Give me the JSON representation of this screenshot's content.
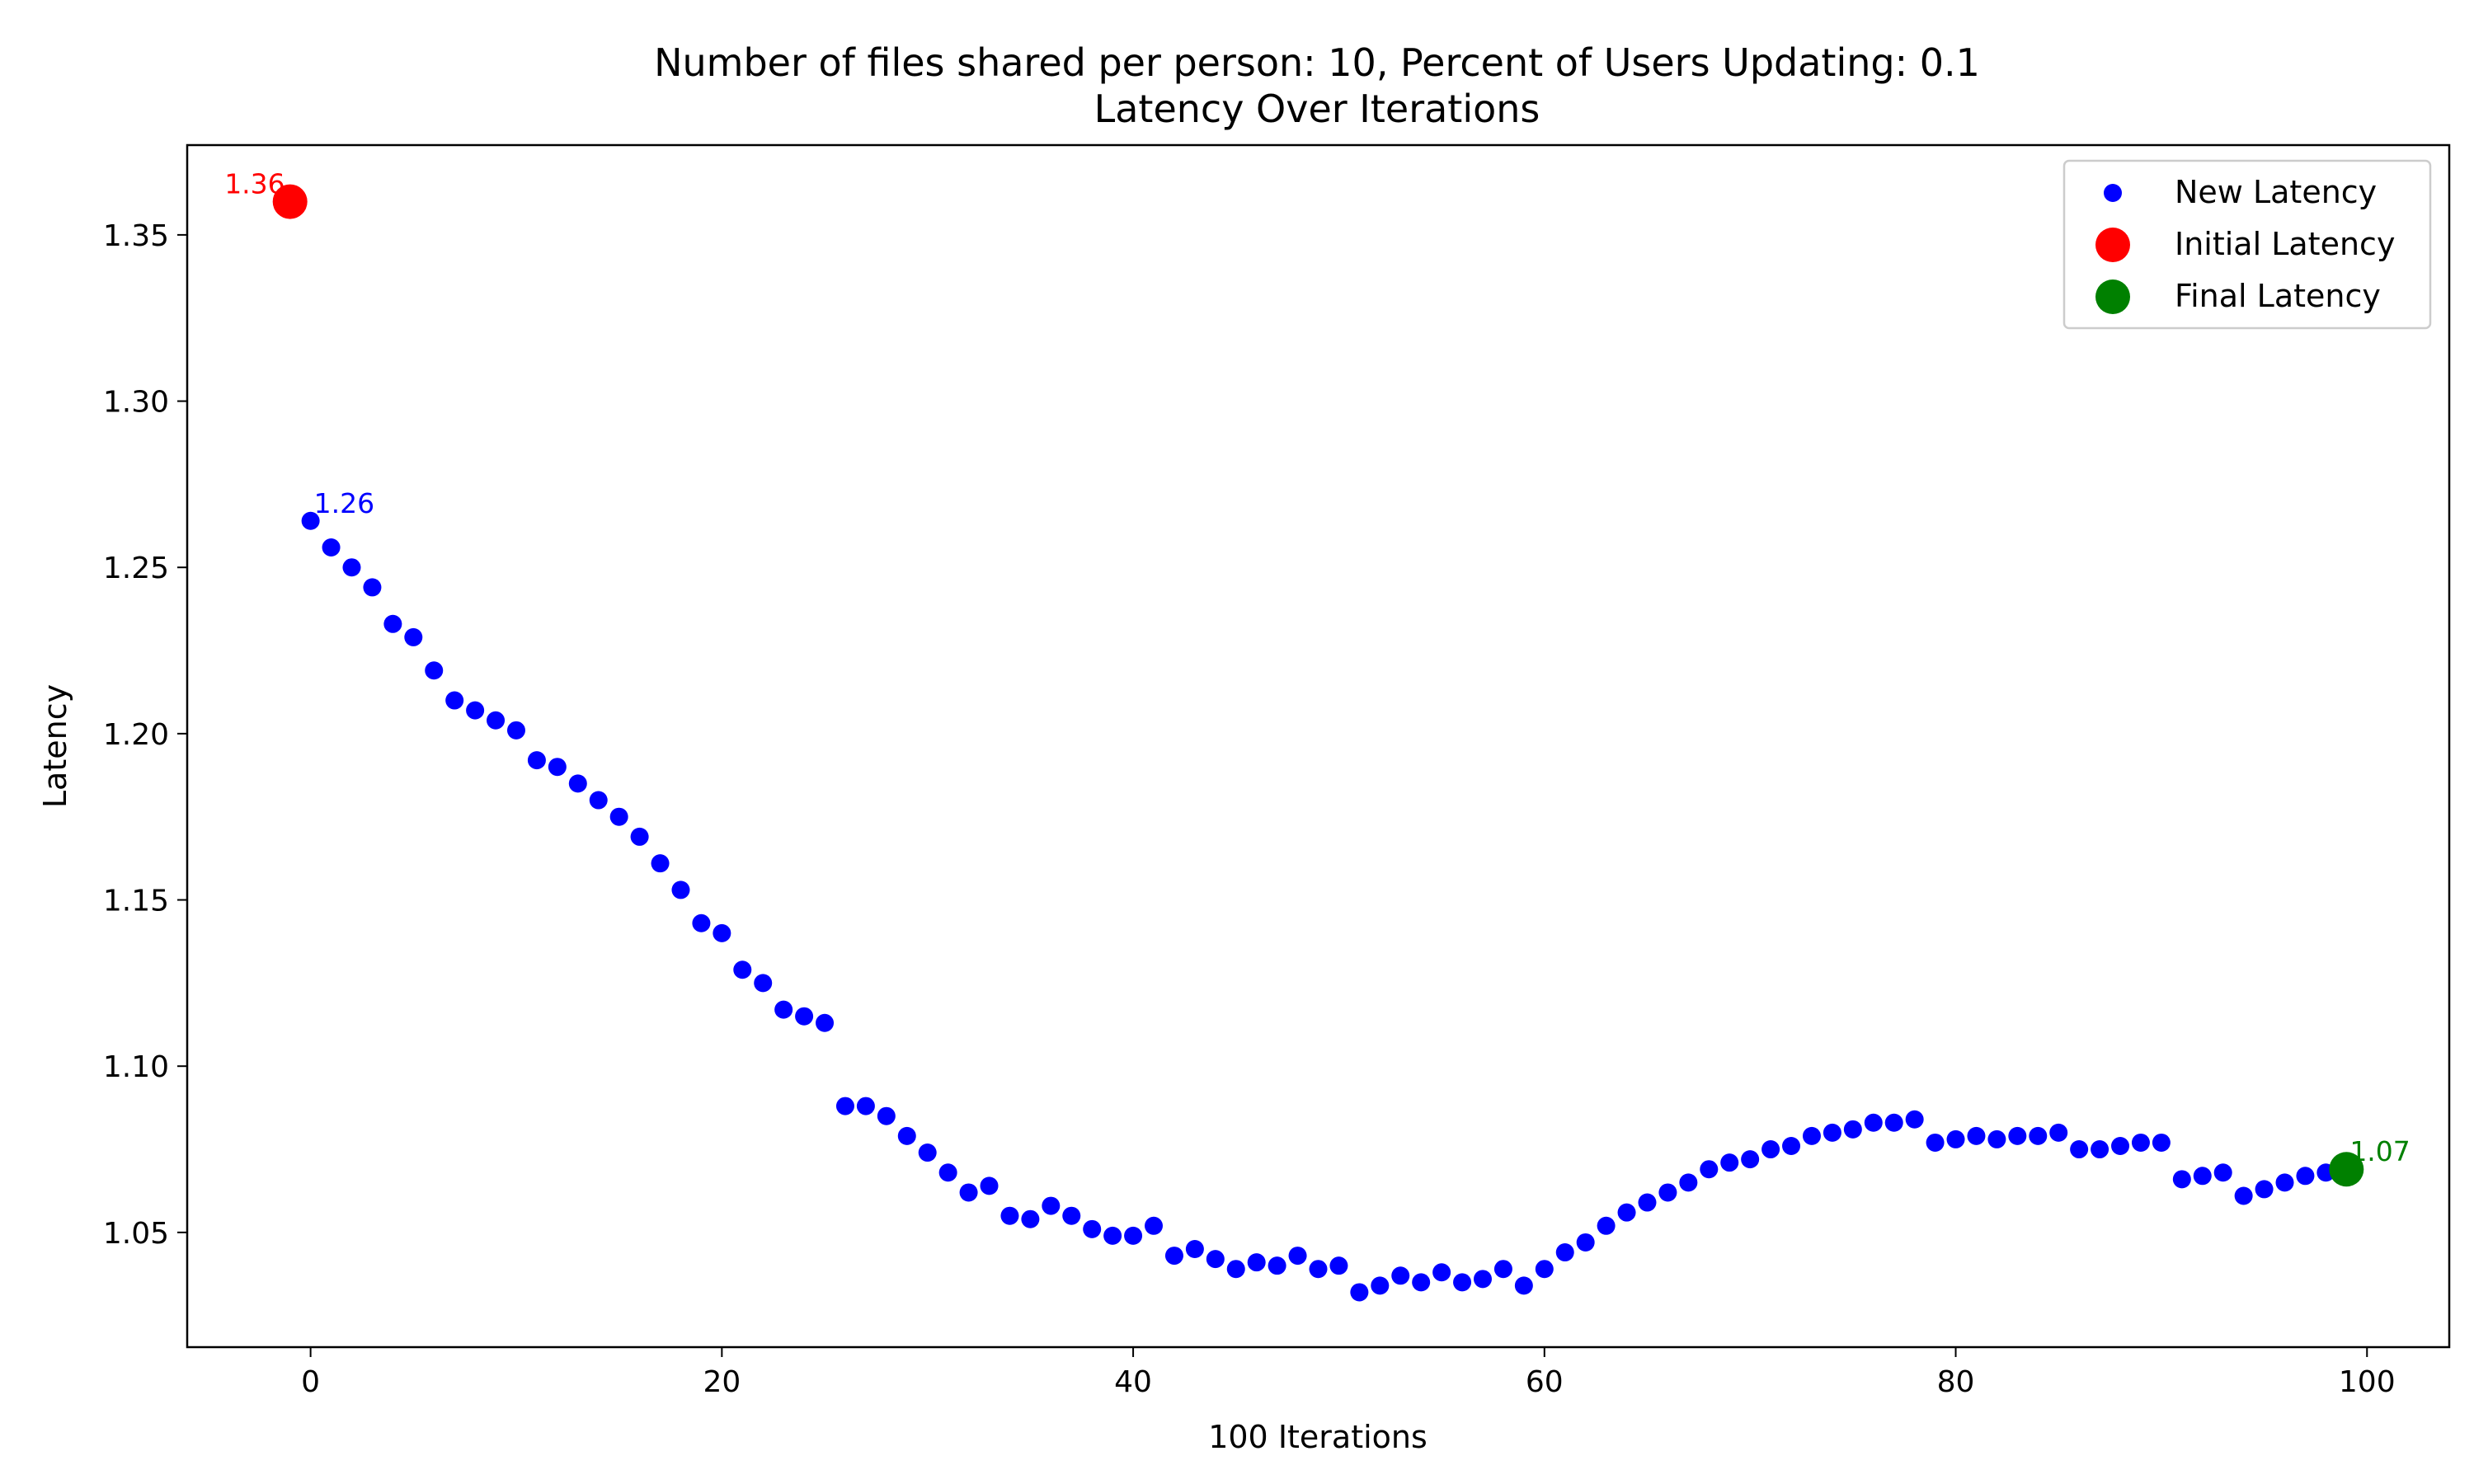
{
  "chart_data": {
    "type": "scatter",
    "title": "Number of files shared per person: 10, Percent of Users Updating: 0.1",
    "subtitle": "Latency Over Iterations",
    "xlabel": "100 Iterations",
    "ylabel": "Latency",
    "xlim": [
      -6,
      104
    ],
    "ylim": [
      1.0155,
      1.377
    ],
    "xticks": [
      0,
      20,
      40,
      60,
      80,
      100
    ],
    "yticks": [
      1.05,
      1.1,
      1.15,
      1.2,
      1.25,
      1.3,
      1.35
    ],
    "xtick_labels": [
      "0",
      "20",
      "40",
      "60",
      "80",
      "100"
    ],
    "ytick_labels": [
      "1.05",
      "1.10",
      "1.15",
      "1.20",
      "1.25",
      "1.30",
      "1.35"
    ],
    "grid": false,
    "legend_position": "top-right",
    "series": [
      {
        "name": "New Latency",
        "color": "#0000ff",
        "marker": "small-circle",
        "x": [
          0,
          1,
          2,
          3,
          4,
          5,
          6,
          7,
          8,
          9,
          10,
          11,
          12,
          13,
          14,
          15,
          16,
          17,
          18,
          19,
          20,
          21,
          22,
          23,
          24,
          25,
          26,
          27,
          28,
          29,
          30,
          31,
          32,
          33,
          34,
          35,
          36,
          37,
          38,
          39,
          40,
          41,
          42,
          43,
          44,
          45,
          46,
          47,
          48,
          49,
          50,
          51,
          52,
          53,
          54,
          55,
          56,
          57,
          58,
          59,
          60,
          61,
          62,
          63,
          64,
          65,
          66,
          67,
          68,
          69,
          70,
          71,
          72,
          73,
          74,
          75,
          76,
          77,
          78,
          79,
          80,
          81,
          82,
          83,
          84,
          85,
          86,
          87,
          88,
          89,
          90,
          91,
          92,
          93,
          94,
          95,
          96,
          97,
          98
        ],
        "y": [
          1.264,
          1.256,
          1.25,
          1.244,
          1.233,
          1.229,
          1.219,
          1.21,
          1.207,
          1.204,
          1.201,
          1.192,
          1.19,
          1.185,
          1.18,
          1.175,
          1.169,
          1.161,
          1.153,
          1.143,
          1.14,
          1.129,
          1.125,
          1.117,
          1.115,
          1.113,
          1.088,
          1.088,
          1.085,
          1.079,
          1.074,
          1.068,
          1.062,
          1.064,
          1.055,
          1.054,
          1.058,
          1.055,
          1.051,
          1.049,
          1.049,
          1.052,
          1.043,
          1.045,
          1.042,
          1.039,
          1.041,
          1.04,
          1.043,
          1.039,
          1.04,
          1.032,
          1.034,
          1.037,
          1.035,
          1.038,
          1.035,
          1.036,
          1.039,
          1.034,
          1.039,
          1.044,
          1.047,
          1.052,
          1.056,
          1.059,
          1.062,
          1.065,
          1.069,
          1.071,
          1.072,
          1.075,
          1.076,
          1.079,
          1.08,
          1.081,
          1.083,
          1.083,
          1.084,
          1.077,
          1.078,
          1.079,
          1.078,
          1.079,
          1.079,
          1.08,
          1.075,
          1.075,
          1.076,
          1.077,
          1.077,
          1.066,
          1.067,
          1.068,
          1.061,
          1.063,
          1.065,
          1.067,
          1.068
        ]
      },
      {
        "name": "Initial Latency",
        "color": "#ff0000",
        "marker": "large-circle",
        "x": [
          -1
        ],
        "y": [
          1.36
        ]
      },
      {
        "name": "Final Latency",
        "color": "#008000",
        "marker": "large-circle",
        "x": [
          99
        ],
        "y": [
          1.069
        ]
      }
    ],
    "annotations": [
      {
        "text": "1.36",
        "x": -1,
        "y": 1.36,
        "color": "#ff0000"
      },
      {
        "text": "1.26",
        "x": 0,
        "y": 1.264,
        "color": "#0000ff"
      },
      {
        "text": "1.07",
        "x": 99,
        "y": 1.069,
        "color": "#008000"
      }
    ]
  }
}
